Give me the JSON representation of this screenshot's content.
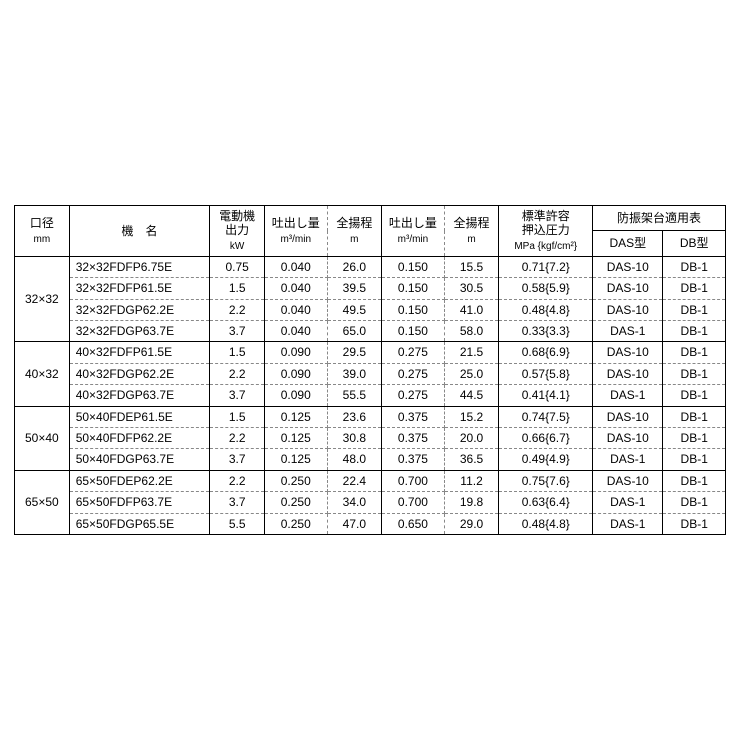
{
  "table": {
    "background_color": "#ffffff",
    "border_color": "#000000",
    "dash_color": "#888888",
    "font_size_main": 12,
    "font_size_sub": 10,
    "headers": {
      "bore": "口径",
      "bore_unit": "mm",
      "model": "機　名",
      "motor": "電動機\n出力",
      "motor_unit": "kW",
      "disch1": "吐出し量",
      "disch1_unit": "m³/min",
      "head1": "全揚程",
      "head1_unit": "m",
      "disch2": "吐出し量",
      "disch2_unit": "m³/min",
      "head2": "全揚程",
      "head2_unit": "m",
      "pressure_t": "標準許容\n押込圧力",
      "pressure_u": "MPa {kgf/cm²}",
      "vib": "防振架台適用表",
      "das": "DAS型",
      "db": "DB型"
    },
    "groups": [
      {
        "bore": "32×32",
        "rows": [
          {
            "model": "32×32FDFP6.75E",
            "kw": "0.75",
            "d1": "0.040",
            "h1": "26.0",
            "d2": "0.150",
            "h2": "15.5",
            "p": "0.71{7.2}",
            "das": "DAS-10",
            "db": "DB-1"
          },
          {
            "model": "32×32FDFP61.5E",
            "kw": "1.5",
            "d1": "0.040",
            "h1": "39.5",
            "d2": "0.150",
            "h2": "30.5",
            "p": "0.58{5.9}",
            "das": "DAS-10",
            "db": "DB-1"
          },
          {
            "model": "32×32FDGP62.2E",
            "kw": "2.2",
            "d1": "0.040",
            "h1": "49.5",
            "d2": "0.150",
            "h2": "41.0",
            "p": "0.48{4.8}",
            "das": "DAS-10",
            "db": "DB-1"
          },
          {
            "model": "32×32FDGP63.7E",
            "kw": "3.7",
            "d1": "0.040",
            "h1": "65.0",
            "d2": "0.150",
            "h2": "58.0",
            "p": "0.33{3.3}",
            "das": "DAS-1",
            "db": "DB-1"
          }
        ]
      },
      {
        "bore": "40×32",
        "rows": [
          {
            "model": "40×32FDFP61.5E",
            "kw": "1.5",
            "d1": "0.090",
            "h1": "29.5",
            "d2": "0.275",
            "h2": "21.5",
            "p": "0.68{6.9}",
            "das": "DAS-10",
            "db": "DB-1"
          },
          {
            "model": "40×32FDGP62.2E",
            "kw": "2.2",
            "d1": "0.090",
            "h1": "39.0",
            "d2": "0.275",
            "h2": "25.0",
            "p": "0.57{5.8}",
            "das": "DAS-10",
            "db": "DB-1"
          },
          {
            "model": "40×32FDGP63.7E",
            "kw": "3.7",
            "d1": "0.090",
            "h1": "55.5",
            "d2": "0.275",
            "h2": "44.5",
            "p": "0.41{4.1}",
            "das": "DAS-1",
            "db": "DB-1"
          }
        ]
      },
      {
        "bore": "50×40",
        "rows": [
          {
            "model": "50×40FDEP61.5E",
            "kw": "1.5",
            "d1": "0.125",
            "h1": "23.6",
            "d2": "0.375",
            "h2": "15.2",
            "p": "0.74{7.5}",
            "das": "DAS-10",
            "db": "DB-1"
          },
          {
            "model": "50×40FDFP62.2E",
            "kw": "2.2",
            "d1": "0.125",
            "h1": "30.8",
            "d2": "0.375",
            "h2": "20.0",
            "p": "0.66{6.7}",
            "das": "DAS-10",
            "db": "DB-1"
          },
          {
            "model": "50×40FDGP63.7E",
            "kw": "3.7",
            "d1": "0.125",
            "h1": "48.0",
            "d2": "0.375",
            "h2": "36.5",
            "p": "0.49{4.9}",
            "das": "DAS-1",
            "db": "DB-1"
          }
        ]
      },
      {
        "bore": "65×50",
        "rows": [
          {
            "model": "65×50FDEP62.2E",
            "kw": "2.2",
            "d1": "0.250",
            "h1": "22.4",
            "d2": "0.700",
            "h2": "11.2",
            "p": "0.75{7.6}",
            "das": "DAS-10",
            "db": "DB-1"
          },
          {
            "model": "65×50FDFP63.7E",
            "kw": "3.7",
            "d1": "0.250",
            "h1": "34.0",
            "d2": "0.700",
            "h2": "19.8",
            "p": "0.63{6.4}",
            "das": "DAS-1",
            "db": "DB-1"
          },
          {
            "model": "65×50FDGP65.5E",
            "kw": "5.5",
            "d1": "0.250",
            "h1": "47.0",
            "d2": "0.650",
            "h2": "29.0",
            "p": "0.48{4.8}",
            "das": "DAS-1",
            "db": "DB-1"
          }
        ]
      }
    ],
    "col_widths_pct": [
      7,
      18,
      7,
      8,
      7,
      8,
      7,
      12,
      9,
      8
    ]
  }
}
